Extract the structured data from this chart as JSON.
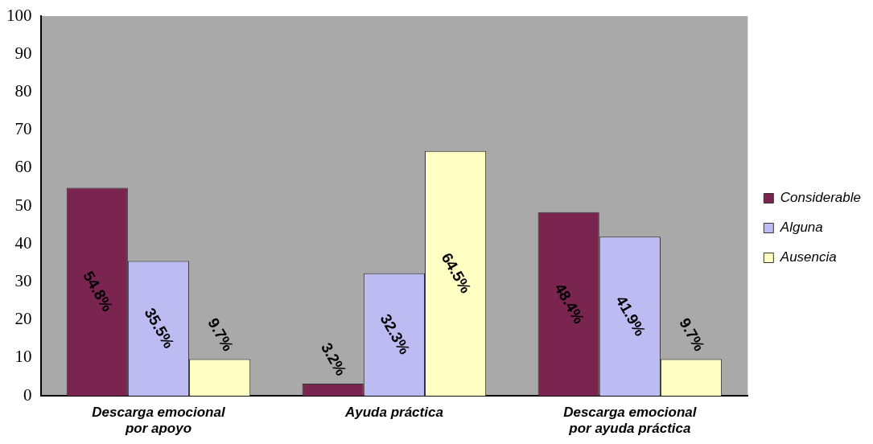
{
  "chart_data": {
    "type": "bar",
    "categories": [
      "Descarga emocional por apoyo",
      "Ayuda práctica",
      "Descarga emocional por ayuda práctica"
    ],
    "series": [
      {
        "name": "Considerable",
        "color": "#7a2450",
        "values": [
          54.8,
          3.2,
          48.4
        ],
        "value_labels": [
          "54.8%",
          "3.2%",
          "48.4%"
        ]
      },
      {
        "name": "Alguna",
        "color": "#bcbcf2",
        "values": [
          35.5,
          32.3,
          41.9
        ],
        "value_labels": [
          "35.5%",
          "32.3%",
          "41.9%"
        ]
      },
      {
        "name": "Ausencia",
        "color": "#ffffc4",
        "values": [
          9.7,
          64.5,
          9.7
        ],
        "value_labels": [
          "9.7%",
          "64.5%",
          "9.7%"
        ]
      }
    ],
    "ylim": [
      0,
      100
    ],
    "yticks": [
      0,
      10,
      20,
      30,
      40,
      50,
      60,
      70,
      80,
      90,
      100
    ],
    "grid": false,
    "legend": "right"
  }
}
